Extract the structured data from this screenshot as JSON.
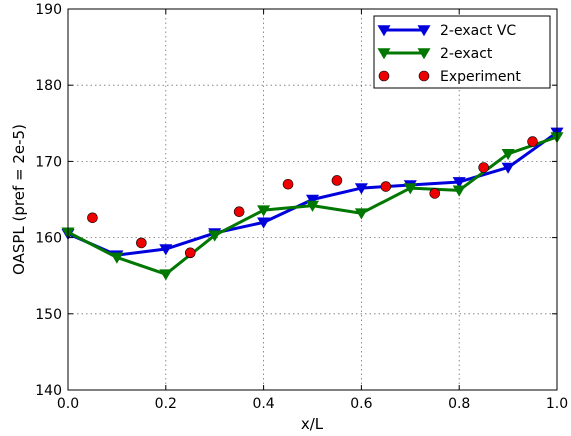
{
  "chart_data": {
    "type": "line",
    "xlabel": "x/L",
    "ylabel": "OASPL (pref = 2e-5)",
    "xlim": [
      0.0,
      1.0
    ],
    "ylim": [
      140,
      190
    ],
    "xticks": [
      "0.0",
      "0.2",
      "0.4",
      "0.6",
      "0.8",
      "1.0"
    ],
    "yticks": [
      "140",
      "150",
      "160",
      "170",
      "180",
      "190"
    ],
    "grid": true,
    "legend_position": "top-right",
    "series": [
      {
        "name": "2-exact VC",
        "color": "#0000dd",
        "marker": "triangle-down",
        "x": [
          0.0,
          0.1,
          0.2,
          0.3,
          0.4,
          0.5,
          0.6,
          0.7,
          0.8,
          0.9,
          1.0
        ],
        "y": [
          160.5,
          157.7,
          158.5,
          160.6,
          162.0,
          165.0,
          166.5,
          166.9,
          167.3,
          169.2,
          173.8
        ]
      },
      {
        "name": "2-exact",
        "color": "#007700",
        "marker": "triangle-down",
        "x": [
          0.0,
          0.1,
          0.2,
          0.3,
          0.4,
          0.5,
          0.6,
          0.7,
          0.8,
          0.9,
          1.0
        ],
        "y": [
          160.7,
          157.4,
          155.2,
          160.3,
          163.6,
          164.2,
          163.2,
          166.5,
          166.2,
          171.0,
          173.2
        ]
      },
      {
        "name": "Experiment",
        "color": "#ee0000",
        "marker": "circle",
        "line": false,
        "x": [
          0.05,
          0.15,
          0.25,
          0.35,
          0.45,
          0.55,
          0.65,
          0.75,
          0.85,
          0.95
        ],
        "y": [
          162.6,
          159.3,
          158.0,
          163.4,
          167.0,
          167.5,
          166.7,
          165.8,
          169.2,
          172.6
        ]
      }
    ]
  }
}
